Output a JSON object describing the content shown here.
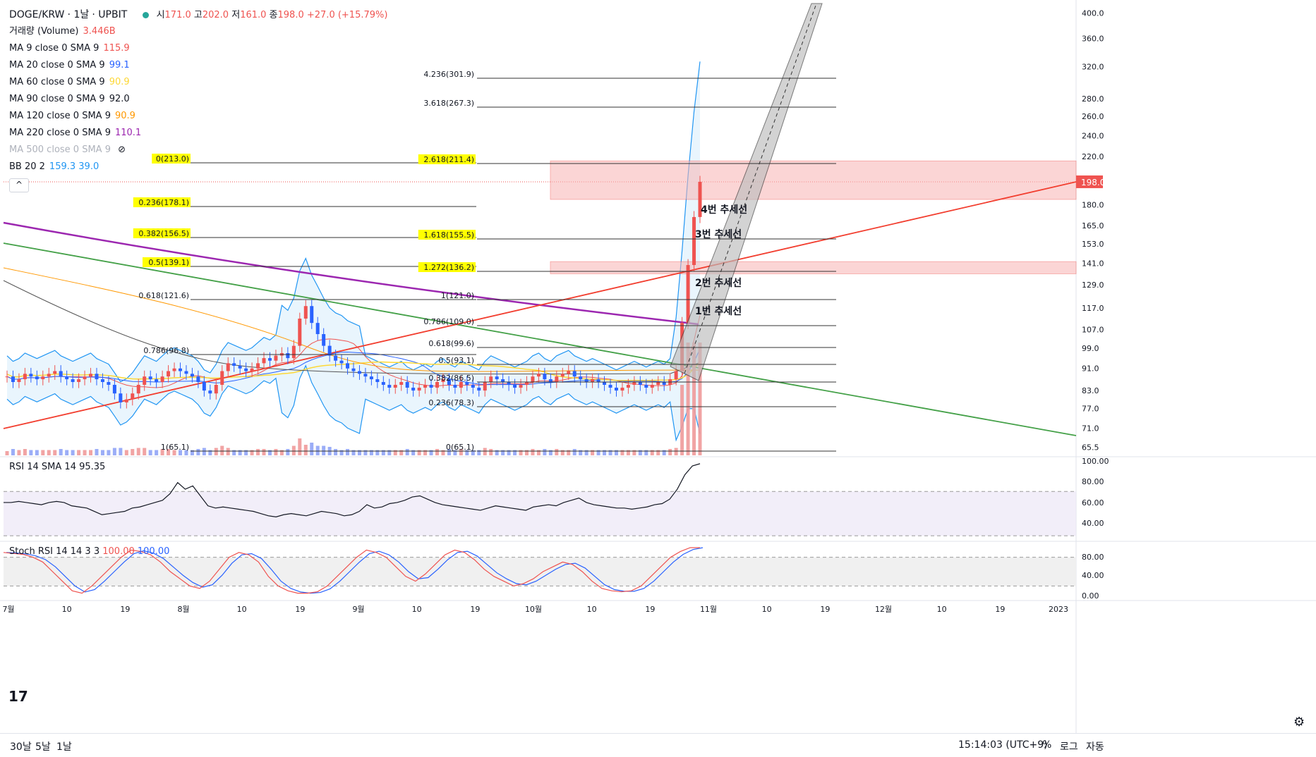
{
  "header": {
    "symbol": "DOGE/KRW",
    "interval": "1날",
    "exchange": "UPBIT",
    "ohlc": {
      "open_label": "시",
      "open": "171.0",
      "high_label": "고",
      "high": "202.0",
      "low_label": "저",
      "low": "161.0",
      "close_label": "종",
      "close": "198.0",
      "change": "+27.0 (+15.79%)"
    },
    "status_color": "#26a69a"
  },
  "indicators": [
    {
      "label": "거래량 (Volume)",
      "value": "3.446B",
      "color": "#ef5350"
    },
    {
      "label": "MA 9 close 0 SMA 9",
      "value": "115.9",
      "color": "#ef5350"
    },
    {
      "label": "MA 20 close 0 SMA 9",
      "value": "99.1",
      "color": "#2962ff"
    },
    {
      "label": "MA 60 close 0 SMA 9",
      "value": "90.9",
      "color": "#fdd835"
    },
    {
      "label": "MA 90 close 0 SMA 9",
      "value": "92.0",
      "color": "#131722"
    },
    {
      "label": "MA 120 close 0 SMA 9",
      "value": "90.9",
      "color": "#ff9800"
    },
    {
      "label": "MA 220 close 0 SMA 9",
      "value": "110.1",
      "color": "#9c27b0"
    },
    {
      "label": "MA 500 close 0 SMA 9",
      "value": "",
      "color": "#aeb2bb",
      "hidden": true
    },
    {
      "label": "BB 20 2",
      "value": "159.3 39.0",
      "color": "#2196f3"
    }
  ],
  "colors": {
    "up": "#ef5350",
    "down": "#2962ff",
    "bb": "#2196f3",
    "bb_fill": "#e3f2fd",
    "trend_red": "#f23d2e",
    "trend_green": "#43a047",
    "ma220": "#9c27b0",
    "ma120": "#ff9800",
    "ma90": "#555555",
    "ma60": "#fdd835",
    "zone": "#f8b4b4",
    "highlight": "#ffff00"
  },
  "price_axis": {
    "ticks": [
      "400.0",
      "360.0",
      "320.0",
      "280.0",
      "260.0",
      "240.0",
      "220.0",
      "198.0",
      "180.0",
      "165.0",
      "153.0",
      "141.0",
      "129.0",
      "117.0",
      "107.0",
      "99.0",
      "91.0",
      "83.0",
      "77.0",
      "71.0",
      "65.5"
    ],
    "current": "198.0"
  },
  "time_axis": {
    "labels": [
      "7월",
      "10",
      "19",
      "8월",
      "10",
      "19",
      "9월",
      "10",
      "19",
      "10월",
      "10",
      "19",
      "11월",
      "10",
      "19",
      "12월",
      "10",
      "19",
      "2023"
    ]
  },
  "fib_left": [
    {
      "label": "0(213.0)",
      "highlight": true
    },
    {
      "label": "0.236(178.1)",
      "highlight": true
    },
    {
      "label": "0.382(156.5)",
      "highlight": true
    },
    {
      "label": "0.5(139.1)",
      "highlight": true
    },
    {
      "label": "0.618(121.6)",
      "highlight": false
    },
    {
      "label": "0.786(96.8)",
      "highlight": false
    },
    {
      "label": "1(65.1)",
      "highlight": false
    }
  ],
  "fib_ext_top": [
    {
      "label": "4.236(301.9)",
      "highlight": false
    },
    {
      "label": "3.618(267.3)",
      "highlight": false
    },
    {
      "label": "2.618(211.4)",
      "highlight": true
    },
    {
      "label": "1.618(155.5)",
      "highlight": true
    },
    {
      "label": "1.272(136.2)",
      "highlight": true
    },
    {
      "label": "1(121.0)",
      "highlight": false
    }
  ],
  "fib_mid": [
    {
      "label": "0.786(109.0)"
    },
    {
      "label": "0.618(99.6)"
    },
    {
      "label": "0.5(93.1)"
    },
    {
      "label": "0.382(86.5)"
    },
    {
      "label": "0.236(78.3)"
    },
    {
      "label": "0(65.1)"
    }
  ],
  "trend_labels": [
    "4번 추세선",
    "3번 추세선",
    "2번 추세선",
    "1번 추세선"
  ],
  "rsi": {
    "label": "RSI 14 SMA 14",
    "value": "95.35",
    "ticks": [
      "100.00",
      "80.00",
      "60.00",
      "40.00"
    ]
  },
  "stoch": {
    "label": "Stoch RSI 14 14 3 3",
    "k": "100.00",
    "d": "100.00",
    "ticks": [
      "80.00",
      "40.00",
      "0.00"
    ]
  },
  "bottom": {
    "ranges": [
      "30날",
      "5날",
      "1날"
    ],
    "clock": "15:14:03 (UTC+9)",
    "pct": "%",
    "log": "로그",
    "auto": "자동"
  },
  "chart_data": {
    "type": "candlestick",
    "symbol": "DOGE/KRW",
    "ylim": [
      63,
      410
    ],
    "y_scale": "log",
    "current_price": 198.0,
    "approx_closes": [
      88,
      86,
      87,
      89,
      88,
      87,
      88,
      89,
      90,
      88,
      87,
      86,
      87,
      88,
      89,
      87,
      86,
      85,
      82,
      79,
      80,
      82,
      85,
      88,
      87,
      86,
      88,
      90,
      91,
      90,
      89,
      88,
      86,
      83,
      82,
      85,
      90,
      93,
      92,
      91,
      90,
      91,
      93,
      95,
      94,
      96,
      97,
      95,
      100,
      112,
      118,
      110,
      105,
      100,
      96,
      94,
      93,
      91,
      90,
      89,
      88,
      87,
      86,
      85,
      84,
      85,
      86,
      84,
      83,
      84,
      85,
      84,
      86,
      87,
      85,
      84,
      86,
      85,
      84,
      83,
      86,
      88,
      87,
      86,
      85,
      84,
      85,
      86,
      88,
      89,
      87,
      86,
      88,
      89,
      90,
      88,
      87,
      86,
      87,
      86,
      85,
      84,
      83,
      84,
      85,
      86,
      85,
      84,
      85,
      86,
      85,
      87,
      90,
      110,
      140,
      171,
      198
    ],
    "rsi_approx": [
      60,
      60,
      61,
      60,
      59,
      58,
      60,
      61,
      60,
      57,
      56,
      55,
      52,
      49,
      50,
      51,
      52,
      55,
      56,
      58,
      60,
      62,
      68,
      78,
      72,
      75,
      66,
      57,
      55,
      56,
      55,
      54,
      53,
      52,
      50,
      48,
      47,
      49,
      50,
      49,
      48,
      50,
      52,
      51,
      50,
      48,
      49,
      52,
      58,
      55,
      56,
      59,
      60,
      62,
      65,
      66,
      63,
      60,
      58,
      57,
      56,
      55,
      54,
      53,
      55,
      57,
      56,
      55,
      54,
      53,
      56,
      57,
      58,
      57,
      60,
      62,
      64,
      60,
      58,
      57,
      56,
      55,
      55,
      54,
      55,
      56,
      58,
      59,
      63,
      72,
      85,
      93,
      95
    ],
    "stoch_k_approx": [
      90,
      88,
      86,
      80,
      70,
      50,
      30,
      10,
      5,
      20,
      40,
      60,
      80,
      95,
      92,
      85,
      70,
      50,
      35,
      20,
      15,
      30,
      55,
      80,
      90,
      85,
      70,
      40,
      20,
      10,
      5,
      5,
      8,
      20,
      40,
      60,
      80,
      95,
      90,
      80,
      60,
      40,
      30,
      45,
      65,
      85,
      95,
      90,
      75,
      55,
      40,
      30,
      20,
      25,
      35,
      50,
      60,
      70,
      65,
      50,
      30,
      15,
      10,
      8,
      10,
      20,
      40,
      60,
      80,
      92,
      100,
      100
    ],
    "bb_upper_approx": 159.3,
    "bb_lower_approx": 39.0
  }
}
